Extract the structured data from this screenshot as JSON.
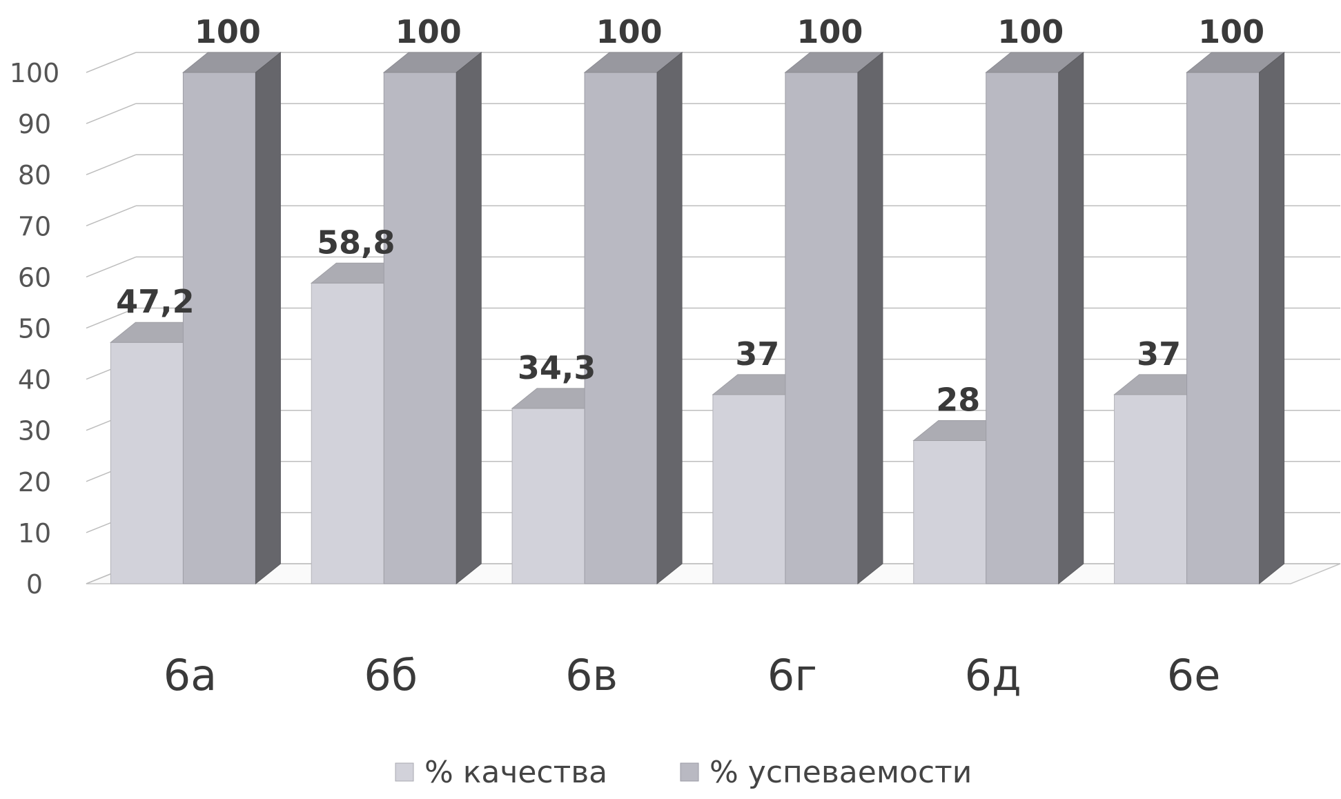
{
  "chart_data": {
    "type": "bar",
    "style": "3d-clustered-column",
    "categories": [
      "6а",
      "6б",
      "6в",
      "6г",
      "6д",
      "6е"
    ],
    "series": [
      {
        "name": "% качества",
        "values": [
          47.2,
          58.8,
          34.3,
          37,
          28,
          37
        ],
        "labels": [
          "47,2",
          "58,8",
          "34,3",
          "37",
          "28",
          "37"
        ],
        "color": "#d2d2da"
      },
      {
        "name": "% успеваемости",
        "values": [
          100,
          100,
          100,
          100,
          100,
          100
        ],
        "labels": [
          "100",
          "100",
          "100",
          "100",
          "100",
          "100"
        ],
        "color": "#b9b9c2"
      }
    ],
    "y_ticks": [
      "0",
      "10",
      "20",
      "30",
      "40",
      "50",
      "60",
      "70",
      "80",
      "90",
      "100"
    ],
    "ylim": [
      0,
      100
    ],
    "grid": true,
    "legend_position": "bottom"
  }
}
